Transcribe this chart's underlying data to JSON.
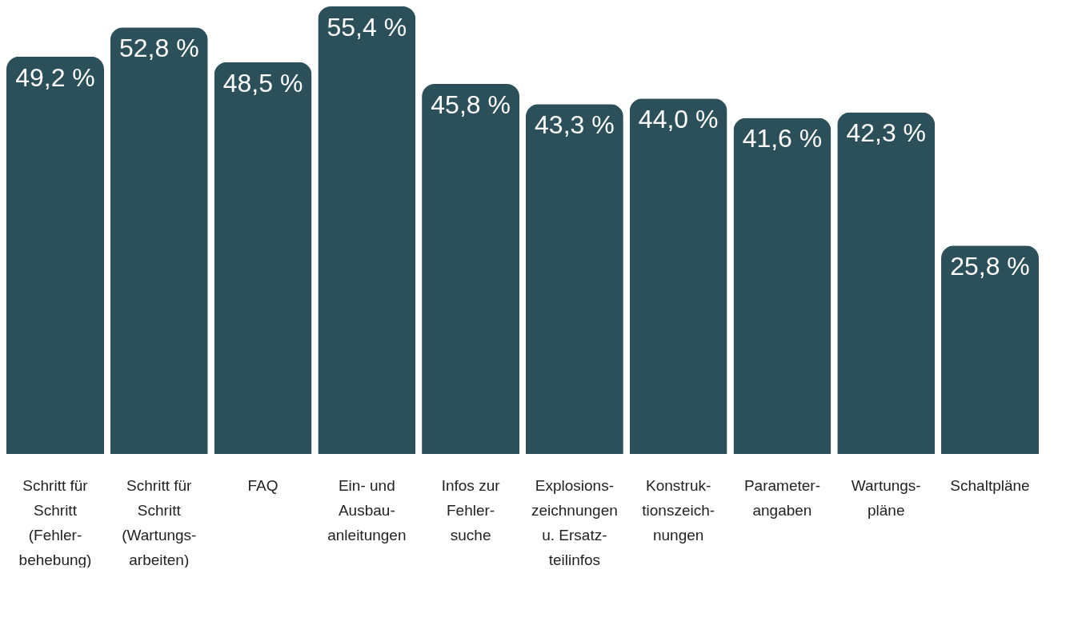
{
  "chart_data": {
    "type": "bar",
    "categories": [
      "Schritt für\nSchritt\n(Fehler-\nbehebung)",
      "Schritt für\nSchritt\n(Wartungs-\narbeiten)",
      "FAQ",
      "Ein- und\nAusbau-\nanleitungen",
      "Infos zur\nFehler-\nsuche",
      "Explosions-\nzeichnungen\nu. Ersatz-\nteilinfos",
      "Konstruk-\ntionszeich-\nnungen",
      "Parameter-\nangaben",
      "Wartungs-\npläne",
      "Schaltpläne"
    ],
    "values": [
      49.2,
      52.8,
      48.5,
      55.4,
      45.8,
      43.3,
      44.0,
      41.6,
      42.3,
      25.8
    ],
    "value_labels": [
      "49,2 %",
      "52,8 %",
      "48,5 %",
      "55,4 %",
      "45,8 %",
      "43,3 %",
      "44,0 %",
      "41,6 %",
      "42,3 %",
      "25,8 %"
    ],
    "color": "#2c5059"
  }
}
